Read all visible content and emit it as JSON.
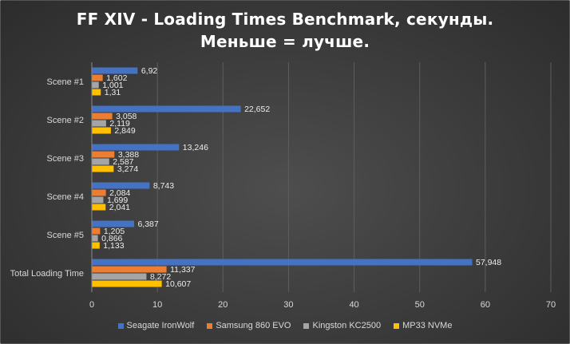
{
  "title": {
    "line1": "FF XIV - Loading Times Benchmark, секунды.",
    "line2": "Меньше = лучше."
  },
  "chart_data": {
    "type": "bar",
    "orientation": "horizontal",
    "categories": [
      "Scene #1",
      "Scene #2",
      "Scene #3",
      "Scene #4",
      "Scene #5",
      "Total Loading Time"
    ],
    "series": [
      {
        "name": "Seagate IronWolf",
        "color": "#4472c4",
        "values": [
          6.92,
          22.652,
          13.246,
          8.743,
          6.387,
          57.948
        ],
        "labels": [
          "6,92",
          "22,652",
          "13,246",
          "8,743",
          "6,387",
          "57,948"
        ]
      },
      {
        "name": "Samsung 860 EVO",
        "color": "#ed7d31",
        "values": [
          1.602,
          3.058,
          3.388,
          2.084,
          1.205,
          11.337
        ],
        "labels": [
          "1,602",
          "3,058",
          "3,388",
          "2,084",
          "1,205",
          "11,337"
        ]
      },
      {
        "name": "Kingston KC2500",
        "color": "#a5a5a5",
        "values": [
          1.001,
          2.119,
          2.587,
          1.699,
          0.866,
          8.272
        ],
        "labels": [
          "1,001",
          "2,119",
          "2,587",
          "1,699",
          "0,866",
          "8,272"
        ]
      },
      {
        "name": "MP33 NVMe",
        "color": "#ffc000",
        "values": [
          1.31,
          2.849,
          3.274,
          2.041,
          1.133,
          10.607
        ],
        "labels": [
          "1,31",
          "2,849",
          "3,274",
          "2,041",
          "1,133",
          "10,607"
        ]
      }
    ],
    "x_ticks": [
      0,
      10,
      20,
      30,
      40,
      50,
      60,
      70
    ],
    "xlim": [
      0,
      70
    ],
    "grid": true,
    "legend_position": "bottom"
  }
}
